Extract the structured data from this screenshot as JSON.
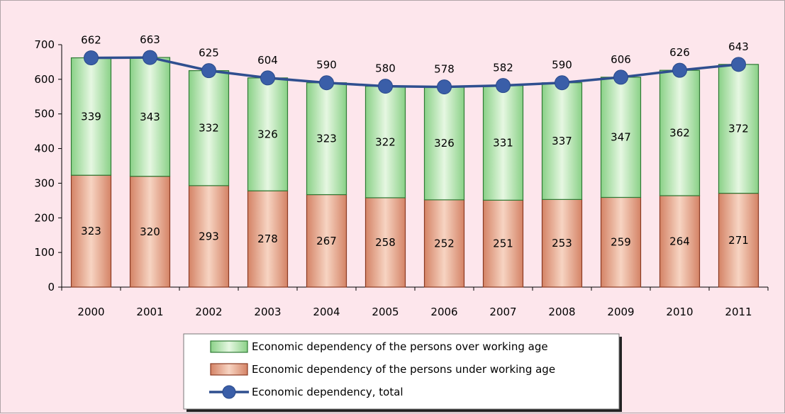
{
  "chart_data": {
    "type": "bar",
    "stacked": true,
    "categories": [
      "2000",
      "2001",
      "2002",
      "2003",
      "2004",
      "2005",
      "2006",
      "2007",
      "2008",
      "2009",
      "2010",
      "2011"
    ],
    "series": [
      {
        "name": "Economic dependency of the persons under working age",
        "kind": "bar",
        "values": [
          323,
          320,
          293,
          278,
          267,
          258,
          252,
          251,
          253,
          259,
          264,
          271
        ],
        "color": "#d9826a"
      },
      {
        "name": "Economic dependency of the persons over working age",
        "kind": "bar",
        "values": [
          339,
          343,
          332,
          326,
          323,
          322,
          326,
          331,
          337,
          347,
          362,
          372
        ],
        "color": "#7fcf7c"
      },
      {
        "name": "Economic dependency, total",
        "kind": "line",
        "values": [
          662,
          663,
          625,
          604,
          590,
          580,
          578,
          582,
          590,
          606,
          626,
          643
        ],
        "color": "#2f4f8f"
      }
    ],
    "ylim": [
      0,
      700
    ],
    "yticks": [
      "0",
      "100",
      "200",
      "300",
      "400",
      "500",
      "600",
      "700"
    ],
    "grid": false,
    "legend_position": "bottom",
    "legend_order": [
      1,
      0,
      2
    ]
  }
}
